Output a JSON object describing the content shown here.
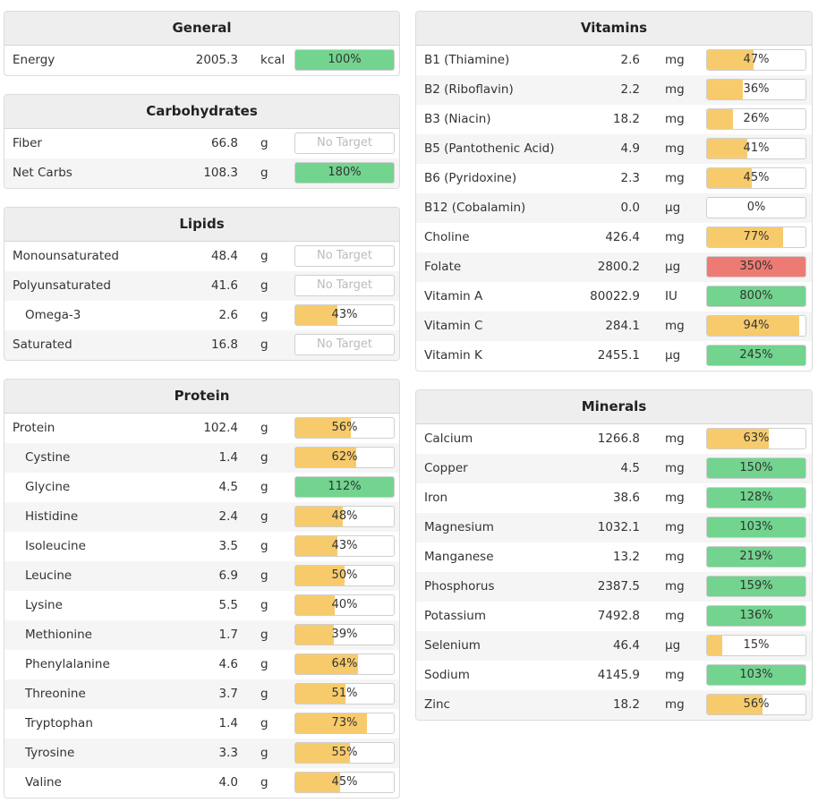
{
  "colors": {
    "green": "#72d48f",
    "yellow": "#f7cb6c",
    "red": "#ed7b74"
  },
  "general": {
    "title": "General",
    "rows": [
      {
        "name": "Energy",
        "value": "2005.3",
        "unit": "kcal",
        "pct": 100,
        "label": "100%",
        "color": "green"
      }
    ]
  },
  "carbohydrates": {
    "title": "Carbohydrates",
    "rows": [
      {
        "name": "Fiber",
        "value": "66.8",
        "unit": "g",
        "pct": 0,
        "label": "No Target",
        "color": "none"
      },
      {
        "name": "Net Carbs",
        "value": "108.3",
        "unit": "g",
        "pct": 100,
        "label": "180%",
        "color": "green"
      }
    ]
  },
  "lipids": {
    "title": "Lipids",
    "rows": [
      {
        "name": "Monounsaturated",
        "value": "48.4",
        "unit": "g",
        "pct": 0,
        "label": "No Target",
        "color": "none"
      },
      {
        "name": "Polyunsaturated",
        "value": "41.6",
        "unit": "g",
        "pct": 0,
        "label": "No Target",
        "color": "none"
      },
      {
        "name": "Omega-3",
        "value": "2.6",
        "unit": "g",
        "pct": 43,
        "label": "43%",
        "color": "yellow",
        "indent": true
      },
      {
        "name": "Saturated",
        "value": "16.8",
        "unit": "g",
        "pct": 0,
        "label": "No Target",
        "color": "none"
      }
    ]
  },
  "protein": {
    "title": "Protein",
    "rows": [
      {
        "name": "Protein",
        "value": "102.4",
        "unit": "g",
        "pct": 56,
        "label": "56%",
        "color": "yellow"
      },
      {
        "name": "Cystine",
        "value": "1.4",
        "unit": "g",
        "pct": 62,
        "label": "62%",
        "color": "yellow",
        "indent": true
      },
      {
        "name": "Glycine",
        "value": "4.5",
        "unit": "g",
        "pct": 100,
        "label": "112%",
        "color": "green",
        "indent": true
      },
      {
        "name": "Histidine",
        "value": "2.4",
        "unit": "g",
        "pct": 48,
        "label": "48%",
        "color": "yellow",
        "indent": true
      },
      {
        "name": "Isoleucine",
        "value": "3.5",
        "unit": "g",
        "pct": 43,
        "label": "43%",
        "color": "yellow",
        "indent": true
      },
      {
        "name": "Leucine",
        "value": "6.9",
        "unit": "g",
        "pct": 50,
        "label": "50%",
        "color": "yellow",
        "indent": true
      },
      {
        "name": "Lysine",
        "value": "5.5",
        "unit": "g",
        "pct": 40,
        "label": "40%",
        "color": "yellow",
        "indent": true
      },
      {
        "name": "Methionine",
        "value": "1.7",
        "unit": "g",
        "pct": 39,
        "label": "39%",
        "color": "yellow",
        "indent": true
      },
      {
        "name": "Phenylalanine",
        "value": "4.6",
        "unit": "g",
        "pct": 64,
        "label": "64%",
        "color": "yellow",
        "indent": true
      },
      {
        "name": "Threonine",
        "value": "3.7",
        "unit": "g",
        "pct": 51,
        "label": "51%",
        "color": "yellow",
        "indent": true
      },
      {
        "name": "Tryptophan",
        "value": "1.4",
        "unit": "g",
        "pct": 73,
        "label": "73%",
        "color": "yellow",
        "indent": true
      },
      {
        "name": "Tyrosine",
        "value": "3.3",
        "unit": "g",
        "pct": 55,
        "label": "55%",
        "color": "yellow",
        "indent": true
      },
      {
        "name": "Valine",
        "value": "4.0",
        "unit": "g",
        "pct": 45,
        "label": "45%",
        "color": "yellow",
        "indent": true
      }
    ]
  },
  "vitamins": {
    "title": "Vitamins",
    "rows": [
      {
        "name": "B1 (Thiamine)",
        "value": "2.6",
        "unit": "mg",
        "pct": 47,
        "label": "47%",
        "color": "yellow"
      },
      {
        "name": "B2 (Riboflavin)",
        "value": "2.2",
        "unit": "mg",
        "pct": 36,
        "label": "36%",
        "color": "yellow"
      },
      {
        "name": "B3 (Niacin)",
        "value": "18.2",
        "unit": "mg",
        "pct": 26,
        "label": "26%",
        "color": "yellow"
      },
      {
        "name": "B5 (Pantothenic Acid)",
        "value": "4.9",
        "unit": "mg",
        "pct": 41,
        "label": "41%",
        "color": "yellow"
      },
      {
        "name": "B6 (Pyridoxine)",
        "value": "2.3",
        "unit": "mg",
        "pct": 45,
        "label": "45%",
        "color": "yellow"
      },
      {
        "name": "B12 (Cobalamin)",
        "value": "0.0",
        "unit": "µg",
        "pct": 0,
        "label": "0%",
        "color": "none"
      },
      {
        "name": "Choline",
        "value": "426.4",
        "unit": "mg",
        "pct": 77,
        "label": "77%",
        "color": "yellow"
      },
      {
        "name": "Folate",
        "value": "2800.2",
        "unit": "µg",
        "pct": 100,
        "label": "350%",
        "color": "red"
      },
      {
        "name": "Vitamin A",
        "value": "80022.9",
        "unit": "IU",
        "pct": 100,
        "label": "800%",
        "color": "green"
      },
      {
        "name": "Vitamin C",
        "value": "284.1",
        "unit": "mg",
        "pct": 94,
        "label": "94%",
        "color": "yellow"
      },
      {
        "name": "Vitamin K",
        "value": "2455.1",
        "unit": "µg",
        "pct": 100,
        "label": "245%",
        "color": "green"
      }
    ]
  },
  "minerals": {
    "title": "Minerals",
    "rows": [
      {
        "name": "Calcium",
        "value": "1266.8",
        "unit": "mg",
        "pct": 63,
        "label": "63%",
        "color": "yellow"
      },
      {
        "name": "Copper",
        "value": "4.5",
        "unit": "mg",
        "pct": 100,
        "label": "150%",
        "color": "green"
      },
      {
        "name": "Iron",
        "value": "38.6",
        "unit": "mg",
        "pct": 100,
        "label": "128%",
        "color": "green"
      },
      {
        "name": "Magnesium",
        "value": "1032.1",
        "unit": "mg",
        "pct": 100,
        "label": "103%",
        "color": "green"
      },
      {
        "name": "Manganese",
        "value": "13.2",
        "unit": "mg",
        "pct": 100,
        "label": "219%",
        "color": "green"
      },
      {
        "name": "Phosphorus",
        "value": "2387.5",
        "unit": "mg",
        "pct": 100,
        "label": "159%",
        "color": "green"
      },
      {
        "name": "Potassium",
        "value": "7492.8",
        "unit": "mg",
        "pct": 100,
        "label": "136%",
        "color": "green"
      },
      {
        "name": "Selenium",
        "value": "46.4",
        "unit": "µg",
        "pct": 15,
        "label": "15%",
        "color": "yellow"
      },
      {
        "name": "Sodium",
        "value": "4145.9",
        "unit": "mg",
        "pct": 100,
        "label": "103%",
        "color": "green"
      },
      {
        "name": "Zinc",
        "value": "18.2",
        "unit": "mg",
        "pct": 56,
        "label": "56%",
        "color": "yellow"
      }
    ]
  }
}
